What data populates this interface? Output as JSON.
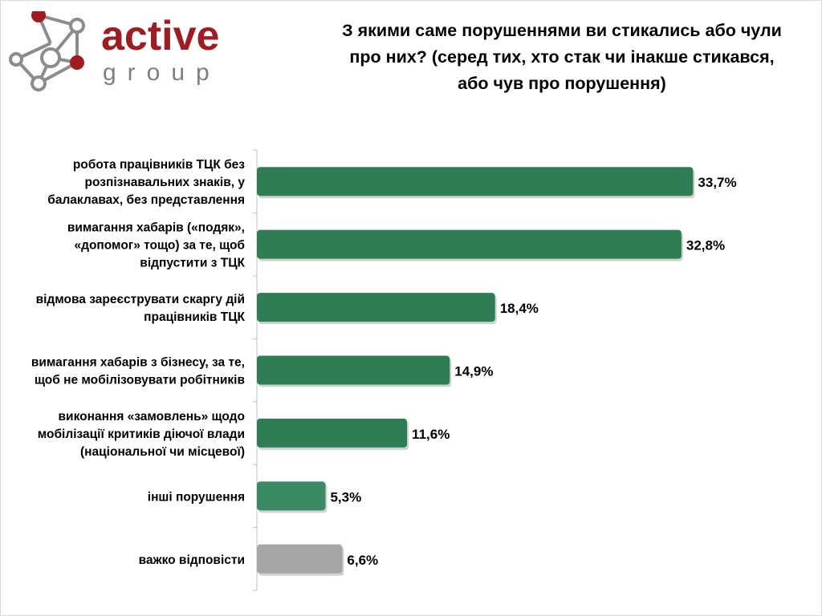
{
  "brand": {
    "name": "active",
    "sub": "group",
    "accent": "#a01c23",
    "graph_color": "#8c8c8c"
  },
  "title_lines": [
    "З якими саме порушеннями ви стикались або чули",
    "про них? (серед тих, хто стак чи інакше стикався,",
    "або чув про порушення)"
  ],
  "chart_data": {
    "type": "bar",
    "orientation": "horizontal",
    "categories": [
      [
        "робота працівників ТЦК без",
        "розпізнавальних знаків, у",
        "балаклавах, без представлення"
      ],
      [
        "вимагання хабарів («подяк»,",
        "«допомог» тощо) за те, щоб",
        "відпустити з ТЦК"
      ],
      [
        "відмова зареєструвати скаргу дій",
        "працівників ТЦК"
      ],
      [
        "вимагання хабарів з бізнесу, за те,",
        "щоб не мобілізовувати робітників"
      ],
      [
        "виконання «замовлень» щодо",
        "мобілізації критиків діючої влади",
        "(національної чи місцевої)"
      ],
      [
        "інші порушення"
      ],
      [
        "важко відповісти"
      ]
    ],
    "values": [
      33.7,
      32.8,
      18.4,
      14.9,
      11.6,
      5.3,
      6.6
    ],
    "value_labels": [
      "33,7%",
      "32,8%",
      "18,4%",
      "14,9%",
      "11,6%",
      "5,3%",
      "6,6%"
    ],
    "bar_colors": [
      "#2e7d55",
      "#2e7d55",
      "#2e7d55",
      "#2e7d55",
      "#2e7d55",
      "#3a8a63",
      "#a6a6a6"
    ],
    "xlim": [
      0,
      40
    ],
    "grid": false
  }
}
